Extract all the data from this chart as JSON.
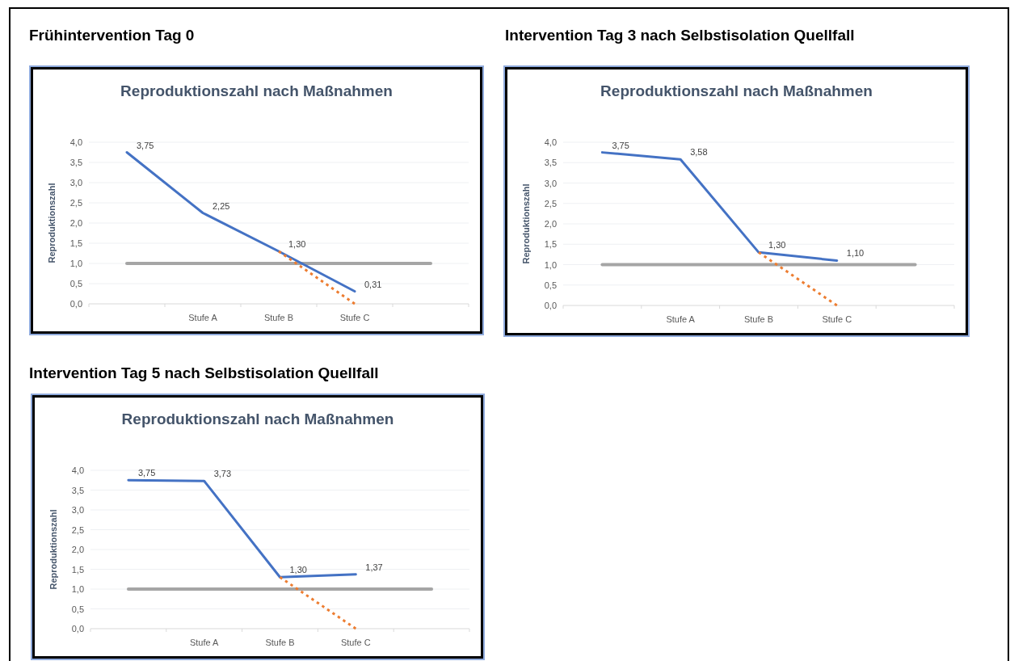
{
  "chart_data": [
    {
      "type": "line",
      "title": "Frühintervention Tag 0",
      "subtitle": "Reproduktionszahl nach Maßnahmen",
      "ylabel": "Reproduktionszahl",
      "categories": [
        null,
        "Stufe A",
        "Stufe B",
        "Stufe C",
        null
      ],
      "ylim": [
        0,
        4
      ],
      "yticks": [
        {
          "value": 0,
          "label": "0,0"
        },
        {
          "value": 0.5,
          "label": "0,5"
        },
        {
          "value": 1,
          "label": "1,0"
        },
        {
          "value": 1.5,
          "label": "1,5"
        },
        {
          "value": 2,
          "label": "2,0"
        },
        {
          "value": 2.5,
          "label": "2,5"
        },
        {
          "value": 3,
          "label": "3,0"
        },
        {
          "value": 3.5,
          "label": "3,5"
        },
        {
          "value": 4,
          "label": "4,0"
        }
      ],
      "grid": "y",
      "marker": "none",
      "series": [
        {
          "color": "#a5a5a5",
          "values": [
            1,
            1,
            1,
            1,
            1
          ],
          "line_style": "solid"
        },
        {
          "color": "#ed7d31",
          "values": [
            null,
            null,
            1.3,
            0,
            null
          ],
          "line_style": "dotted"
        },
        {
          "color": "#4472c4",
          "values": [
            3.75,
            2.25,
            1.3,
            0.31,
            null
          ],
          "line_style": "solid",
          "value_labels": [
            "3,75",
            "2,25",
            "1,30",
            "0,31",
            null
          ]
        }
      ]
    },
    {
      "type": "line",
      "title": "Intervention Tag 3 nach Selbstisolation Quellfall",
      "subtitle": "Reproduktionszahl nach Maßnahmen",
      "ylabel": "Reproduktionszahl",
      "categories": [
        null,
        "Stufe A",
        "Stufe B",
        "Stufe C",
        null
      ],
      "ylim": [
        0,
        4
      ],
      "yticks": [
        {
          "value": 0,
          "label": "0,0"
        },
        {
          "value": 0.5,
          "label": "0,5"
        },
        {
          "value": 1,
          "label": "1,0"
        },
        {
          "value": 1.5,
          "label": "1,5"
        },
        {
          "value": 2,
          "label": "2,0"
        },
        {
          "value": 2.5,
          "label": "2,5"
        },
        {
          "value": 3,
          "label": "3,0"
        },
        {
          "value": 3.5,
          "label": "3,5"
        },
        {
          "value": 4,
          "label": "4,0"
        }
      ],
      "grid": "y",
      "marker": "none",
      "series": [
        {
          "color": "#a5a5a5",
          "values": [
            1,
            1,
            1,
            1,
            1
          ],
          "line_style": "solid"
        },
        {
          "color": "#ed7d31",
          "values": [
            null,
            null,
            1.3,
            0,
            null
          ],
          "line_style": "dotted"
        },
        {
          "color": "#4472c4",
          "values": [
            3.75,
            3.58,
            1.3,
            1.1,
            null
          ],
          "line_style": "solid",
          "value_labels": [
            "3,75",
            "3,58",
            "1,30",
            "1,10",
            null
          ]
        }
      ]
    },
    {
      "type": "line",
      "title": "Intervention Tag 5 nach Selbstisolation Quellfall",
      "subtitle": "Reproduktionszahl nach Maßnahmen",
      "ylabel": "Reproduktionszahl",
      "categories": [
        null,
        "Stufe A",
        "Stufe B",
        "Stufe C",
        null
      ],
      "ylim": [
        0,
        4
      ],
      "yticks": [
        {
          "value": 0,
          "label": "0,0"
        },
        {
          "value": 0.5,
          "label": "0,5"
        },
        {
          "value": 1,
          "label": "1,0"
        },
        {
          "value": 1.5,
          "label": "1,5"
        },
        {
          "value": 2,
          "label": "2,0"
        },
        {
          "value": 2.5,
          "label": "2,5"
        },
        {
          "value": 3,
          "label": "3,0"
        },
        {
          "value": 3.5,
          "label": "3,5"
        },
        {
          "value": 4,
          "label": "4,0"
        }
      ],
      "grid": "y",
      "marker": "none",
      "series": [
        {
          "color": "#a5a5a5",
          "values": [
            1,
            1,
            1,
            1,
            1
          ],
          "line_style": "solid"
        },
        {
          "color": "#ed7d31",
          "values": [
            null,
            null,
            1.3,
            0,
            null
          ],
          "line_style": "dotted"
        },
        {
          "color": "#4472c4",
          "values": [
            3.75,
            3.73,
            1.3,
            1.37,
            null
          ],
          "line_style": "solid",
          "value_labels": [
            "3,75",
            "3,73",
            "1,30",
            "1,37",
            null
          ]
        }
      ]
    }
  ]
}
